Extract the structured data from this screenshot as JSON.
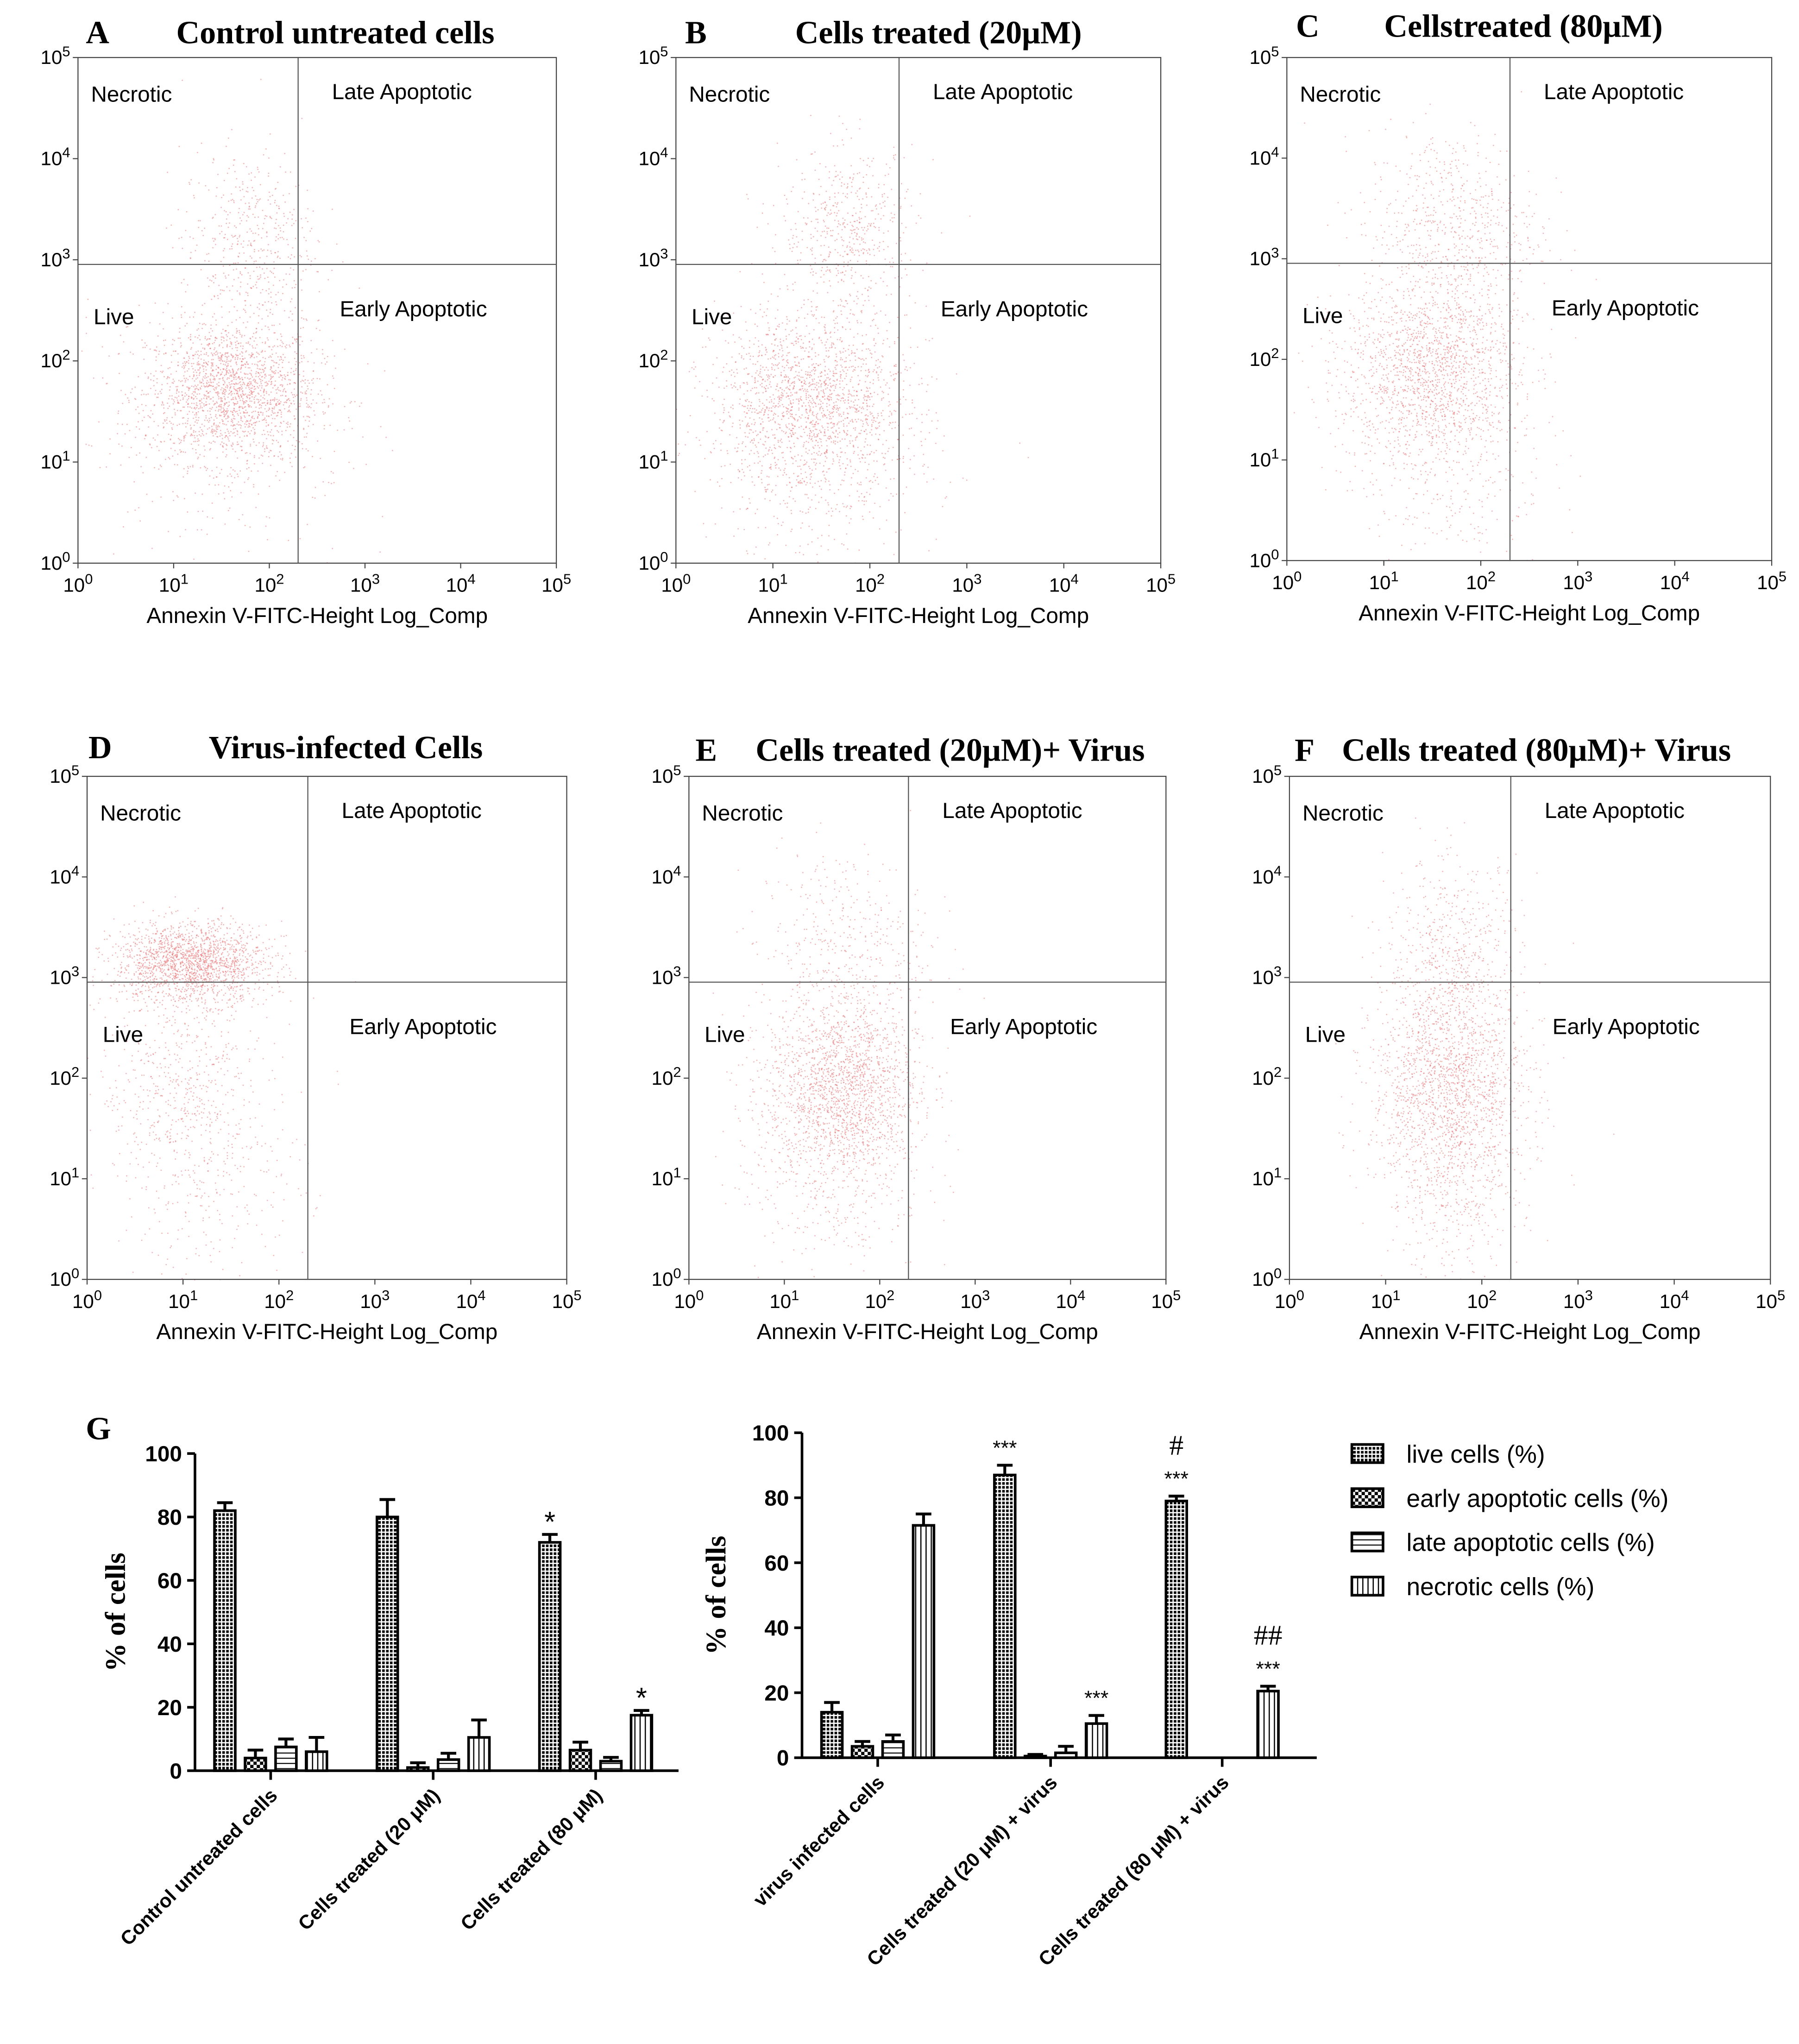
{
  "dot_color": "#e8787a",
  "ink_color": "#000000",
  "quadrant_labels": {
    "necrotic": "Necrotic",
    "late": "Late Apoptotic",
    "live": "Live",
    "early": "Early Apoptotic"
  },
  "chart_data": [
    {
      "type": "scatter",
      "letter": "A",
      "title": "Control untreated cells",
      "xlabel": "Annexin V-FITC-Height Log_Comp",
      "ylabel": "",
      "xscale": "log",
      "yscale": "log",
      "xlim": [
        1,
        100000
      ],
      "ylim": [
        1,
        100000
      ],
      "tick_labels": [
        "10",
        "0",
        "10",
        "1",
        "10",
        "2",
        "10",
        "3",
        "10",
        "4",
        "10",
        "5"
      ],
      "gate": {
        "x": 200,
        "y": 900
      },
      "clusters": [
        {
          "cx": 40,
          "cy": 50,
          "spread_x": 0.45,
          "spread_y": 0.35,
          "weight": 0.72
        },
        {
          "cx": 60,
          "cy": 1500,
          "spread_x": 0.35,
          "spread_y": 0.45,
          "weight": 0.18
        },
        {
          "cx": 30,
          "cy": 20,
          "spread_x": 0.7,
          "spread_y": 0.7,
          "weight": 0.1
        }
      ]
    },
    {
      "type": "scatter",
      "letter": "B",
      "title": "Cells treated (20μM)",
      "xlabel": "Annexin V-FITC-Height Log_Comp",
      "ylabel": "",
      "xscale": "log",
      "yscale": "log",
      "xlim": [
        1,
        100000
      ],
      "ylim": [
        1,
        100000
      ],
      "tick_labels": [
        "10",
        "0",
        "10",
        "1",
        "10",
        "2",
        "10",
        "3",
        "10",
        "4",
        "10",
        "5"
      ],
      "gate": {
        "x": 200,
        "y": 900
      },
      "clusters": [
        {
          "cx": 25,
          "cy": 40,
          "spread_x": 0.5,
          "spread_y": 0.45,
          "weight": 0.65
        },
        {
          "cx": 60,
          "cy": 2000,
          "spread_x": 0.35,
          "spread_y": 0.4,
          "weight": 0.2
        },
        {
          "cx": 30,
          "cy": 10,
          "spread_x": 0.6,
          "spread_y": 0.6,
          "weight": 0.15
        }
      ]
    },
    {
      "type": "scatter",
      "letter": "C",
      "title": "Cellstreated (80μM)",
      "xlabel": "Annexin V-FITC-Height Log_Comp",
      "ylabel": "",
      "xscale": "log",
      "yscale": "log",
      "xlim": [
        1,
        100000
      ],
      "ylim": [
        1,
        100000
      ],
      "tick_labels": [
        "10",
        "0",
        "10",
        "1",
        "10",
        "2",
        "10",
        "3",
        "10",
        "4",
        "10",
        "5"
      ],
      "gate": {
        "x": 200,
        "y": 900
      },
      "clusters": [
        {
          "cx": 30,
          "cy": 80,
          "spread_x": 0.45,
          "spread_y": 0.45,
          "weight": 0.62
        },
        {
          "cx": 50,
          "cy": 2000,
          "spread_x": 0.45,
          "spread_y": 0.5,
          "weight": 0.25
        },
        {
          "cx": 40,
          "cy": 10,
          "spread_x": 0.55,
          "spread_y": 0.6,
          "weight": 0.13
        }
      ]
    },
    {
      "type": "scatter",
      "letter": "D",
      "title": "Virus-infected Cells",
      "xlabel": "Annexin V-FITC-Height Log_Comp",
      "ylabel": "",
      "xscale": "log",
      "yscale": "log",
      "xlim": [
        1,
        100000
      ],
      "ylim": [
        1,
        100000
      ],
      "tick_labels": [
        "10",
        "0",
        "10",
        "1",
        "10",
        "2",
        "10",
        "3",
        "10",
        "4",
        "10",
        "5"
      ],
      "gate": {
        "x": 200,
        "y": 900
      },
      "clusters": [
        {
          "cx": 12,
          "cy": 1400,
          "spread_x": 0.4,
          "spread_y": 0.2,
          "weight": 0.7
        },
        {
          "cx": 10,
          "cy": 80,
          "spread_x": 0.45,
          "spread_y": 0.5,
          "weight": 0.2
        },
        {
          "cx": 20,
          "cy": 10,
          "spread_x": 0.5,
          "spread_y": 0.5,
          "weight": 0.1
        }
      ]
    },
    {
      "type": "scatter",
      "letter": "E",
      "title": "Cells treated (20μM)+ Virus",
      "xlabel": "Annexin V-FITC-Height Log_Comp",
      "ylabel": "",
      "xscale": "log",
      "yscale": "log",
      "xlim": [
        1,
        100000
      ],
      "ylim": [
        1,
        100000
      ],
      "tick_labels": [
        "10",
        "0",
        "10",
        "1",
        "10",
        "2",
        "10",
        "3",
        "10",
        "4",
        "10",
        "5"
      ],
      "gate": {
        "x": 200,
        "y": 900
      },
      "clusters": [
        {
          "cx": 40,
          "cy": 80,
          "spread_x": 0.4,
          "spread_y": 0.45,
          "weight": 0.72
        },
        {
          "cx": 40,
          "cy": 2000,
          "spread_x": 0.45,
          "spread_y": 0.5,
          "weight": 0.16
        },
        {
          "cx": 30,
          "cy": 10,
          "spread_x": 0.5,
          "spread_y": 0.5,
          "weight": 0.12
        }
      ]
    },
    {
      "type": "scatter",
      "letter": "F",
      "title": "Cells treated (80μM)+ Virus",
      "xlabel": "Annexin V-FITC-Height Log_Comp",
      "ylabel": "",
      "xscale": "log",
      "yscale": "log",
      "xlim": [
        1,
        100000
      ],
      "ylim": [
        1,
        100000
      ],
      "tick_labels": [
        "10",
        "0",
        "10",
        "1",
        "10",
        "2",
        "10",
        "3",
        "10",
        "4",
        "10",
        "5"
      ],
      "gate": {
        "x": 200,
        "y": 900
      },
      "clusters": [
        {
          "cx": 45,
          "cy": 80,
          "spread_x": 0.4,
          "spread_y": 0.5,
          "weight": 0.62
        },
        {
          "cx": 50,
          "cy": 1500,
          "spread_x": 0.35,
          "spread_y": 0.5,
          "weight": 0.23
        },
        {
          "cx": 50,
          "cy": 8,
          "spread_x": 0.35,
          "spread_y": 0.5,
          "weight": 0.15
        }
      ]
    },
    {
      "type": "bar",
      "letter": "G",
      "title": "",
      "xlabel": "",
      "ylabel": "% of cells",
      "ylim": [
        0,
        100
      ],
      "yticks": [
        0,
        20,
        40,
        60,
        80,
        100
      ],
      "categories": [
        "Control untreated cells",
        "Cells treated (20 μM)",
        "Cells treated (80 μM)"
      ],
      "series": [
        {
          "name": "live cells (%)",
          "pattern": "dense",
          "values": [
            82,
            80,
            72
          ],
          "errors": [
            2.5,
            5.5,
            2.5
          ]
        },
        {
          "name": "early apoptotic cells (%)",
          "pattern": "check",
          "values": [
            4,
            1,
            6.5
          ],
          "errors": [
            2.5,
            1.5,
            2.5
          ]
        },
        {
          "name": "late apoptotic cells (%)",
          "pattern": "hline",
          "values": [
            7.5,
            3.5,
            3
          ],
          "errors": [
            2.5,
            2.0,
            1.2
          ]
        },
        {
          "name": "necrotic cells (%)",
          "pattern": "vline",
          "values": [
            6,
            10.5,
            17.5
          ],
          "errors": [
            4.5,
            5.5,
            1.5
          ]
        }
      ],
      "annotations": [
        {
          "series": 0,
          "category": 2,
          "text": "*"
        },
        {
          "series": 3,
          "category": 2,
          "text": "*"
        }
      ]
    },
    {
      "type": "bar",
      "letter": "",
      "title": "",
      "xlabel": "",
      "ylabel": "% of cells",
      "ylim": [
        0,
        100
      ],
      "yticks": [
        0,
        20,
        40,
        60,
        80,
        100
      ],
      "categories": [
        "virus infected cells",
        "Cells treated (20 μM) + virus",
        "Cells treated (80 μM) + virus"
      ],
      "series": [
        {
          "name": "live cells (%)",
          "pattern": "dense",
          "values": [
            14,
            87,
            79
          ],
          "errors": [
            3,
            3,
            1.5
          ]
        },
        {
          "name": "early apoptotic cells (%)",
          "pattern": "check",
          "values": [
            3.5,
            0.5,
            0
          ],
          "errors": [
            1.5,
            0.5,
            0
          ]
        },
        {
          "name": "late apoptotic cells (%)",
          "pattern": "hline",
          "values": [
            5,
            1.5,
            0
          ],
          "errors": [
            2,
            2,
            0
          ]
        },
        {
          "name": "necrotic cells (%)",
          "pattern": "vline",
          "values": [
            71.5,
            10.5,
            20.5
          ],
          "errors": [
            3.5,
            2.5,
            1.5
          ]
        }
      ],
      "annotations": [
        {
          "series": 0,
          "category": 1,
          "text": "***"
        },
        {
          "series": 3,
          "category": 1,
          "text": "***"
        },
        {
          "series": 0,
          "category": 2,
          "text": "***",
          "extra": "#"
        },
        {
          "series": 3,
          "category": 2,
          "text": "***",
          "extra": "##"
        }
      ],
      "legend": [
        "live cells (%)",
        "early apoptotic cells (%)",
        "late apoptotic cells (%)",
        "necrotic cells (%)"
      ]
    }
  ]
}
